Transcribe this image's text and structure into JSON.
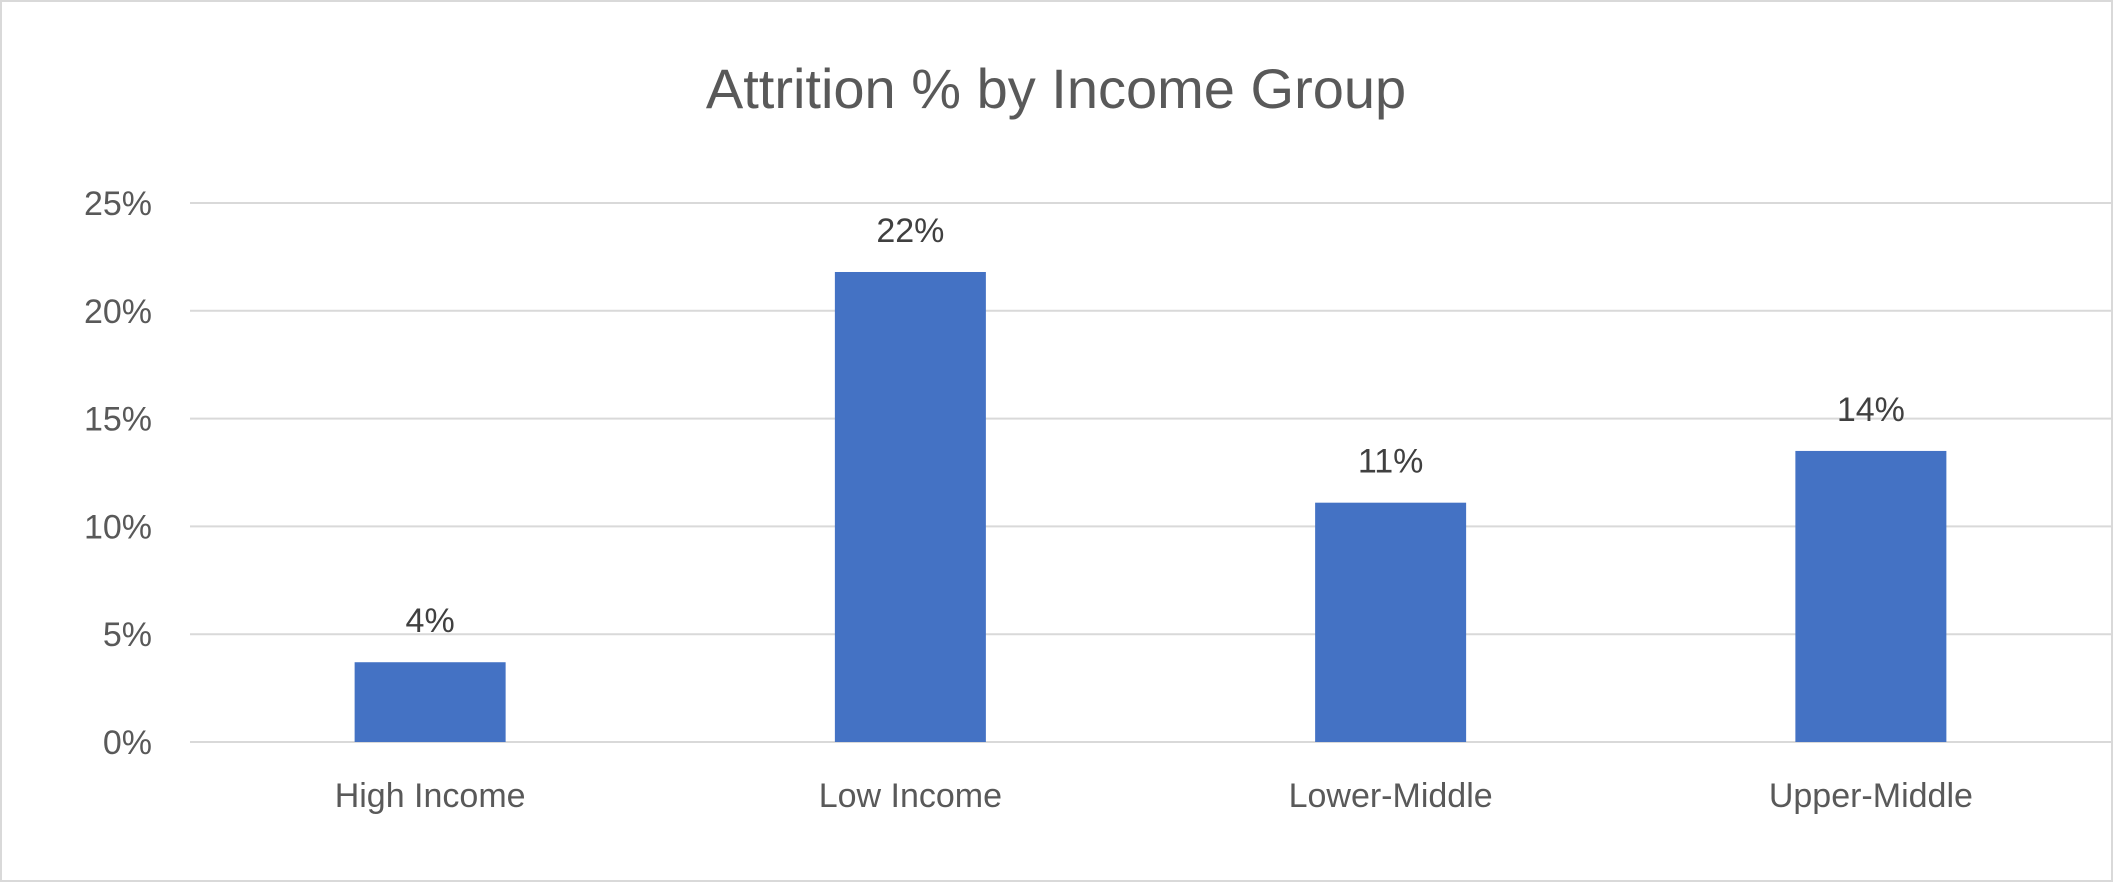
{
  "chart_data": {
    "type": "bar",
    "title": "Attrition % by Income Group",
    "categories": [
      "High Income",
      "Low Income",
      "Lower-Middle",
      "Upper-Middle"
    ],
    "values": [
      3.7,
      21.8,
      11.1,
      13.5
    ],
    "data_labels": [
      "4%",
      "22%",
      "11%",
      "14%"
    ],
    "ylim": [
      0,
      25
    ],
    "yticks": [
      0,
      5,
      10,
      15,
      20,
      25
    ],
    "ytick_labels": [
      "0%",
      "5%",
      "10%",
      "15%",
      "20%",
      "25%"
    ],
    "xlabel": "",
    "ylabel": "",
    "grid": true,
    "legend": "none",
    "bar_color": "#4472C4",
    "grid_color": "#d9d9d9"
  }
}
